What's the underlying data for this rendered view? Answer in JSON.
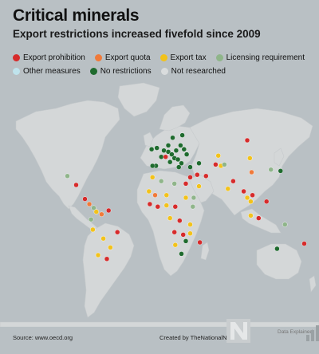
{
  "header": {
    "title": "Critical minerals",
    "subtitle": "Export restrictions increased fivefold since 2009"
  },
  "legend": [
    {
      "key": "prohibition",
      "label": "Export prohibition",
      "color": "#d62b2b"
    },
    {
      "key": "quota",
      "label": "Export quota",
      "color": "#f07a3a"
    },
    {
      "key": "tax",
      "label": "Export tax",
      "color": "#f2c21b"
    },
    {
      "key": "licensing",
      "label": "Licensing requirement",
      "color": "#8fb58a"
    },
    {
      "key": "other",
      "label": "Other measures",
      "color": "#bfe3ec"
    },
    {
      "key": "none",
      "label": "No restrictions",
      "color": "#1f6b2e"
    },
    {
      "key": "not_researched",
      "label": "Not researched",
      "color": "#d9dcdd"
    }
  ],
  "map": {
    "land_color": "#d4d7d8",
    "ocean_color": "#b9c0c4",
    "markers": [
      {
        "lon": -78,
        "lat": -2,
        "category": "licensing"
      },
      {
        "lon": -105,
        "lat": 32,
        "category": "licensing"
      },
      {
        "lon": -95,
        "lat": 25,
        "category": "prohibition"
      },
      {
        "lon": -85,
        "lat": 14,
        "category": "prohibition"
      },
      {
        "lon": -80,
        "lat": 10,
        "category": "quota"
      },
      {
        "lon": -75,
        "lat": 7,
        "category": "licensing"
      },
      {
        "lon": -72,
        "lat": 4,
        "category": "tax"
      },
      {
        "lon": -66,
        "lat": 2,
        "category": "quota"
      },
      {
        "lon": -58,
        "lat": 5,
        "category": "prohibition"
      },
      {
        "lon": -76,
        "lat": -10,
        "category": "tax"
      },
      {
        "lon": -64,
        "lat": -17,
        "category": "tax"
      },
      {
        "lon": -48,
        "lat": -12,
        "category": "prohibition"
      },
      {
        "lon": -70,
        "lat": -30,
        "category": "tax"
      },
      {
        "lon": -60,
        "lat": -33,
        "category": "prohibition"
      },
      {
        "lon": -56,
        "lat": -24,
        "category": "tax"
      },
      {
        "lon": -9,
        "lat": 53,
        "category": "none"
      },
      {
        "lon": -3,
        "lat": 54,
        "category": "none"
      },
      {
        "lon": 2,
        "lat": 47,
        "category": "none"
      },
      {
        "lon": -4,
        "lat": 40,
        "category": "none"
      },
      {
        "lon": -8,
        "lat": 40,
        "category": "none"
      },
      {
        "lon": 5,
        "lat": 52,
        "category": "none"
      },
      {
        "lon": 10,
        "lat": 56,
        "category": "none"
      },
      {
        "lon": 15,
        "lat": 62,
        "category": "none"
      },
      {
        "lon": 26,
        "lat": 64,
        "category": "none"
      },
      {
        "lon": 10,
        "lat": 51,
        "category": "none"
      },
      {
        "lon": 19,
        "lat": 52,
        "category": "none"
      },
      {
        "lon": 14,
        "lat": 49,
        "category": "none"
      },
      {
        "lon": 12,
        "lat": 43,
        "category": "none"
      },
      {
        "lon": 17,
        "lat": 46,
        "category": "none"
      },
      {
        "lon": 21,
        "lat": 45,
        "category": "none"
      },
      {
        "lon": 25,
        "lat": 42,
        "category": "none"
      },
      {
        "lon": 22,
        "lat": 39,
        "category": "none"
      },
      {
        "lon": 24,
        "lat": 56,
        "category": "none"
      },
      {
        "lon": 31,
        "lat": 49,
        "category": "none"
      },
      {
        "lon": 28,
        "lat": 53,
        "category": "none"
      },
      {
        "lon": 35,
        "lat": 39,
        "category": "none"
      },
      {
        "lon": 45,
        "lat": 42,
        "category": "none"
      },
      {
        "lon": 7,
        "lat": 47,
        "category": "prohibition"
      },
      {
        "lon": 35,
        "lat": 31,
        "category": "prohibition"
      },
      {
        "lon": 43,
        "lat": 33,
        "category": "prohibition"
      },
      {
        "lon": 53,
        "lat": 32,
        "category": "prohibition"
      },
      {
        "lon": 45,
        "lat": 24,
        "category": "tax"
      },
      {
        "lon": 39,
        "lat": 15,
        "category": "licensing"
      },
      {
        "lon": 67,
        "lat": 48,
        "category": "tax"
      },
      {
        "lon": 64,
        "lat": 41,
        "category": "prohibition"
      },
      {
        "lon": 70,
        "lat": 40,
        "category": "tax"
      },
      {
        "lon": 74,
        "lat": 41,
        "category": "licensing"
      },
      {
        "lon": 100,
        "lat": 60,
        "category": "prohibition"
      },
      {
        "lon": 103,
        "lat": 46,
        "category": "tax"
      },
      {
        "lon": 105,
        "lat": 35,
        "category": "quota"
      },
      {
        "lon": 127,
        "lat": 37,
        "category": "licensing"
      },
      {
        "lon": 138,
        "lat": 36,
        "category": "none"
      },
      {
        "lon": 78,
        "lat": 22,
        "category": "tax"
      },
      {
        "lon": 84,
        "lat": 28,
        "category": "prohibition"
      },
      {
        "lon": 96,
        "lat": 20,
        "category": "prohibition"
      },
      {
        "lon": 100,
        "lat": 15,
        "category": "tax"
      },
      {
        "lon": 104,
        "lat": 12,
        "category": "tax"
      },
      {
        "lon": 106,
        "lat": 17,
        "category": "prohibition"
      },
      {
        "lon": 104,
        "lat": 1,
        "category": "tax"
      },
      {
        "lon": 113,
        "lat": -1,
        "category": "prohibition"
      },
      {
        "lon": 122,
        "lat": 12,
        "category": "prohibition"
      },
      {
        "lon": 143,
        "lat": -6,
        "category": "licensing"
      },
      {
        "lon": 134,
        "lat": -25,
        "category": "none"
      },
      {
        "lon": 165,
        "lat": -21,
        "category": "prohibition"
      },
      {
        "lon": -8,
        "lat": 31,
        "category": "tax"
      },
      {
        "lon": 2,
        "lat": 28,
        "category": "licensing"
      },
      {
        "lon": 17,
        "lat": 26,
        "category": "licensing"
      },
      {
        "lon": 30,
        "lat": 26,
        "category": "prohibition"
      },
      {
        "lon": -12,
        "lat": 20,
        "category": "tax"
      },
      {
        "lon": -5,
        "lat": 17,
        "category": "quota"
      },
      {
        "lon": 8,
        "lat": 17,
        "category": "tax"
      },
      {
        "lon": -11,
        "lat": 10,
        "category": "prohibition"
      },
      {
        "lon": -2,
        "lat": 8,
        "category": "prohibition"
      },
      {
        "lon": 8,
        "lat": 9,
        "category": "tax"
      },
      {
        "lon": 18,
        "lat": 8,
        "category": "prohibition"
      },
      {
        "lon": 30,
        "lat": 15,
        "category": "tax"
      },
      {
        "lon": 38,
        "lat": 8,
        "category": "licensing"
      },
      {
        "lon": 12,
        "lat": -1,
        "category": "tax"
      },
      {
        "lon": 23,
        "lat": -3,
        "category": "prohibition"
      },
      {
        "lon": 35,
        "lat": -6,
        "category": "tax"
      },
      {
        "lon": 17,
        "lat": -12,
        "category": "prohibition"
      },
      {
        "lon": 27,
        "lat": -14,
        "category": "prohibition"
      },
      {
        "lon": 35,
        "lat": -13,
        "category": "tax"
      },
      {
        "lon": 30,
        "lat": -19,
        "category": "none"
      },
      {
        "lon": 18,
        "lat": -22,
        "category": "tax"
      },
      {
        "lon": 25,
        "lat": -29,
        "category": "none"
      },
      {
        "lon": 46,
        "lat": -20,
        "category": "prohibition"
      }
    ]
  },
  "footer": {
    "source": "Source: www.oecd.org",
    "credit": "Created by TheNationalNews.com",
    "logo_text": "Data Explained"
  }
}
